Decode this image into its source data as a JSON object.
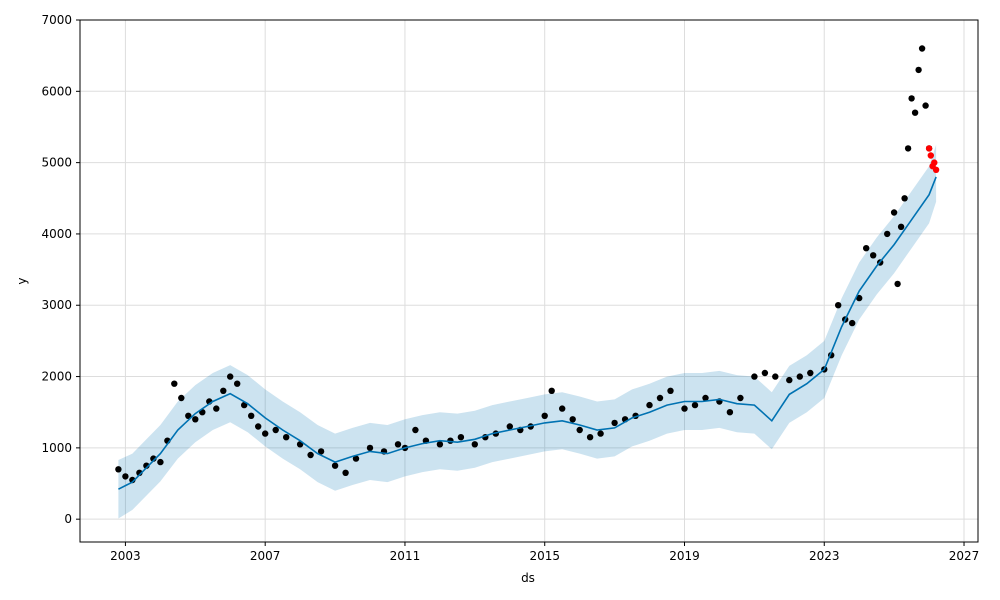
{
  "chart_data": {
    "type": "scatter",
    "title": "",
    "xlabel": "ds",
    "ylabel": "y",
    "xlim": [
      2001.7,
      2027.4
    ],
    "ylim": [
      -320,
      7000
    ],
    "grid": true,
    "legend": "none",
    "x_ticks": [
      2003,
      2007,
      2011,
      2015,
      2019,
      2023,
      2027
    ],
    "x_tick_labels": [
      "2003",
      "2007",
      "2011",
      "2015",
      "2019",
      "2023",
      "2027"
    ],
    "y_ticks": [
      0,
      1000,
      2000,
      3000,
      4000,
      5000,
      6000,
      7000
    ],
    "y_tick_labels": [
      "0",
      "1000",
      "2000",
      "3000",
      "4000",
      "5000",
      "6000",
      "7000"
    ],
    "colors": {
      "observed": "#000000",
      "forecast": "#0072B2",
      "interval": "#0072B2",
      "recent": "#FF0000",
      "grid": "#DDDDDD"
    },
    "forecast": {
      "x": [
        2002.8,
        2003.2,
        2003.6,
        2004.0,
        2004.5,
        2005.0,
        2005.5,
        2006.0,
        2006.5,
        2007.0,
        2007.5,
        2008.0,
        2008.5,
        2009.0,
        2009.5,
        2010.0,
        2010.5,
        2011.0,
        2011.5,
        2012.0,
        2012.5,
        2013.0,
        2013.5,
        2014.0,
        2014.5,
        2015.0,
        2015.5,
        2016.0,
        2016.5,
        2017.0,
        2017.5,
        2018.0,
        2018.5,
        2019.0,
        2019.5,
        2020.0,
        2020.5,
        2021.0,
        2021.5,
        2022.0,
        2022.5,
        2023.0,
        2023.5,
        2024.0,
        2024.5,
        2025.0,
        2025.5,
        2026.0,
        2026.2
      ],
      "yhat": [
        420,
        520,
        720,
        920,
        1250,
        1480,
        1650,
        1760,
        1620,
        1420,
        1250,
        1100,
        920,
        800,
        880,
        950,
        920,
        1000,
        1060,
        1100,
        1080,
        1120,
        1200,
        1250,
        1300,
        1350,
        1380,
        1320,
        1250,
        1280,
        1420,
        1500,
        1600,
        1650,
        1650,
        1680,
        1620,
        1600,
        1380,
        1750,
        1900,
        2100,
        2700,
        3200,
        3550,
        3850,
        4200,
        4550,
        4800
      ],
      "lower": [
        10,
        130,
        330,
        530,
        850,
        1080,
        1250,
        1360,
        1220,
        1020,
        850,
        700,
        520,
        400,
        480,
        550,
        520,
        600,
        660,
        700,
        680,
        720,
        800,
        850,
        900,
        950,
        980,
        920,
        850,
        880,
        1020,
        1100,
        1200,
        1250,
        1250,
        1280,
        1220,
        1200,
        980,
        1350,
        1500,
        1700,
        2300,
        2800,
        3150,
        3450,
        3800,
        4150,
        4450
      ],
      "upper": [
        830,
        920,
        1120,
        1320,
        1650,
        1880,
        2050,
        2160,
        2020,
        1820,
        1650,
        1500,
        1320,
        1200,
        1280,
        1350,
        1320,
        1400,
        1460,
        1500,
        1480,
        1520,
        1600,
        1650,
        1700,
        1750,
        1780,
        1720,
        1650,
        1680,
        1820,
        1900,
        2000,
        2050,
        2050,
        2080,
        2020,
        2000,
        1780,
        2150,
        2300,
        2500,
        3100,
        3600,
        3950,
        4250,
        4600,
        4950,
        5250
      ]
    },
    "observed": {
      "x": [
        2002.8,
        2003.0,
        2003.2,
        2003.4,
        2003.6,
        2003.8,
        2004.0,
        2004.2,
        2004.4,
        2004.6,
        2004.8,
        2005.0,
        2005.2,
        2005.4,
        2005.6,
        2005.8,
        2006.0,
        2006.2,
        2006.4,
        2006.6,
        2006.8,
        2007.0,
        2007.3,
        2007.6,
        2008.0,
        2008.3,
        2008.6,
        2009.0,
        2009.3,
        2009.6,
        2010.0,
        2010.4,
        2010.8,
        2011.0,
        2011.3,
        2011.6,
        2012.0,
        2012.3,
        2012.6,
        2013.0,
        2013.3,
        2013.6,
        2014.0,
        2014.3,
        2014.6,
        2015.0,
        2015.2,
        2015.5,
        2015.8,
        2016.0,
        2016.3,
        2016.6,
        2017.0,
        2017.3,
        2017.6,
        2018.0,
        2018.3,
        2018.6,
        2019.0,
        2019.3,
        2019.6,
        2020.0,
        2020.3,
        2020.6,
        2021.0,
        2021.3,
        2021.6,
        2022.0,
        2022.3,
        2022.6,
        2023.0,
        2023.2,
        2023.4,
        2023.6,
        2023.8,
        2024.0,
        2024.2,
        2024.4,
        2024.6,
        2024.8,
        2025.0,
        2025.1,
        2025.2,
        2025.3,
        2025.4,
        2025.5,
        2025.6,
        2025.7,
        2025.8,
        2025.9,
        2026.0
      ],
      "y": [
        700,
        600,
        550,
        650,
        750,
        850,
        800,
        1100,
        1900,
        1700,
        1450,
        1400,
        1500,
        1650,
        1550,
        1800,
        2000,
        1900,
        1600,
        1450,
        1300,
        1200,
        1250,
        1150,
        1050,
        900,
        950,
        750,
        650,
        850,
        1000,
        950,
        1050,
        1000,
        1250,
        1100,
        1050,
        1100,
        1150,
        1050,
        1150,
        1200,
        1300,
        1250,
        1300,
        1450,
        1800,
        1550,
        1400,
        1250,
        1150,
        1200,
        1350,
        1400,
        1450,
        1600,
        1700,
        1800,
        1550,
        1600,
        1700,
        1650,
        1500,
        1700,
        2000,
        2050,
        2000,
        1950,
        2000,
        2050,
        2100,
        2300,
        3000,
        2800,
        2750,
        3100,
        3800,
        3700,
        3600,
        4000,
        4300,
        3300,
        4100,
        4500,
        5200,
        5900,
        5700,
        6300,
        6600,
        5800,
        5200
      ]
    },
    "recent": {
      "x": [
        2026.0,
        2026.05,
        2026.1,
        2026.15,
        2026.2
      ],
      "y": [
        5200,
        5100,
        4950,
        5000,
        4900
      ]
    }
  }
}
